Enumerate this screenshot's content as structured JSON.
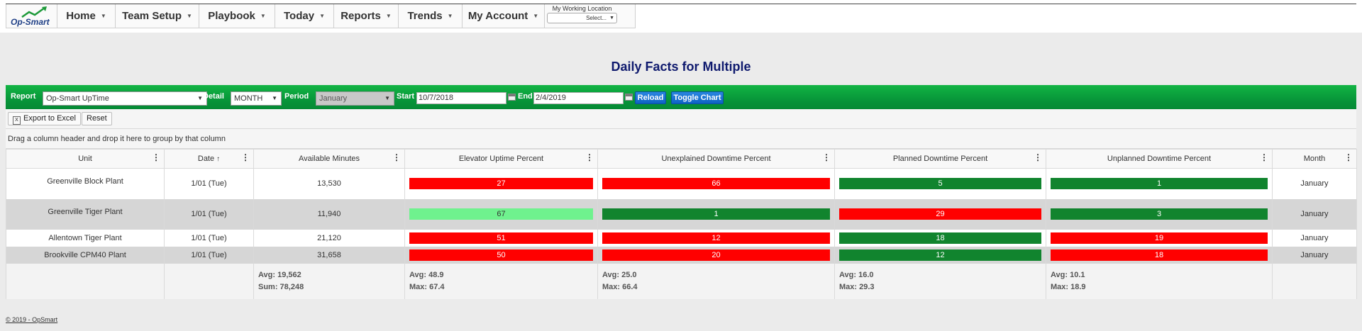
{
  "app": {
    "logo_text": "Op-Smart"
  },
  "nav": {
    "items": [
      {
        "label": "Home"
      },
      {
        "label": "Team Setup"
      },
      {
        "label": "Playbook"
      },
      {
        "label": "Today"
      },
      {
        "label": "Reports"
      },
      {
        "label": "Trends"
      },
      {
        "label": "My Account"
      }
    ],
    "working_location": {
      "label": "My Working Location",
      "value": "Select..."
    }
  },
  "page": {
    "title": "Daily Facts for Multiple"
  },
  "toolbar": {
    "report_label": "Report",
    "report_value": "Op-Smart UpTime",
    "detail_label": "Detail",
    "detail_value": "MONTH",
    "period_label": "Period",
    "period_value": "January",
    "start_label": "Start",
    "start_value": "10/7/2018",
    "end_label": "End",
    "end_value": "2/4/2019",
    "reload_label": "Reload",
    "toggle_chart_label": "Toggle Chart"
  },
  "grid_tools": {
    "export_label": "Export to Excel",
    "reset_label": "Reset"
  },
  "group_hint": "Drag a column header and drop it here to group by that column",
  "columns": [
    "Unit",
    "Date",
    "Available Minutes",
    "Elevator Uptime Percent",
    "Unexplained Downtime Percent",
    "Planned Downtime Percent",
    "Unplanned Downtime Percent",
    "Month"
  ],
  "sort": {
    "column": "Date",
    "direction": "ascending"
  },
  "status_colors": {
    "red": "#ff0000",
    "green": "#11842e",
    "lightgreen": "#6ff28e"
  },
  "rows": [
    {
      "unit": "Greenville Block Plant",
      "date": "1/01 (Tue)",
      "available_minutes": "13,530",
      "uptime": "27",
      "uptime_status": "red",
      "unexplained": "66",
      "unexplained_status": "red",
      "planned": "5",
      "planned_status": "green",
      "unplanned": "1",
      "unplanned_status": "green",
      "month": "January"
    },
    {
      "unit": "Greenville Tiger Plant",
      "date": "1/01 (Tue)",
      "available_minutes": "11,940",
      "uptime": "67",
      "uptime_status": "lightgreen",
      "unexplained": "1",
      "unexplained_status": "green",
      "planned": "29",
      "planned_status": "red",
      "unplanned": "3",
      "unplanned_status": "green",
      "month": "January"
    },
    {
      "unit": "Allentown Tiger Plant",
      "date": "1/01 (Tue)",
      "available_minutes": "21,120",
      "uptime": "51",
      "uptime_status": "red",
      "unexplained": "12",
      "unexplained_status": "red",
      "planned": "18",
      "planned_status": "green",
      "unplanned": "19",
      "unplanned_status": "red",
      "month": "January"
    },
    {
      "unit": "Brookville CPM40 Plant",
      "date": "1/01 (Tue)",
      "available_minutes": "31,658",
      "uptime": "50",
      "uptime_status": "red",
      "unexplained": "20",
      "unexplained_status": "red",
      "planned": "12",
      "planned_status": "green",
      "unplanned": "18",
      "unplanned_status": "red",
      "month": "January"
    }
  ],
  "footer_aggregates": {
    "available_avg": "Avg: 19,562",
    "available_sum": "Sum: 78,248",
    "uptime_avg": "Avg: 48.9",
    "uptime_max": "Max: 67.4",
    "unexplained_avg": "Avg: 25.0",
    "unexplained_max": "Max: 66.4",
    "planned_avg": "Avg: 16.0",
    "planned_max": "Max: 29.3",
    "unplanned_avg": "Avg: 10.1",
    "unplanned_max": "Max: 18.9"
  },
  "footer": {
    "copyright": "© 2019 - OpSmart"
  }
}
